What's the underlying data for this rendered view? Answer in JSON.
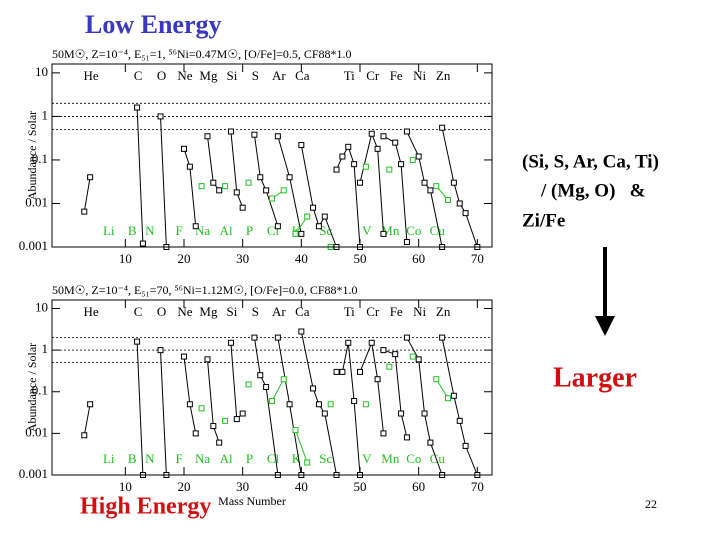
{
  "slide": {
    "title_top": "Low Energy",
    "title_bottom": "High Energy",
    "side_text": [
      "(Si, S, Ar, Ca, Ti)",
      "/ (Mg, O)   &",
      "Zi/Fe"
    ],
    "conclusion": "Larger",
    "page_number": "22"
  },
  "chart_data": [
    {
      "type": "line",
      "subtitle": "50M☉, Z=10⁻⁴, E₅₁=1, ⁵⁶Ni=0.47M☉,  [O/Fe]=0.5, CF88*1.0",
      "ylabel": "Abundance / Solar",
      "log_y": true,
      "xlim": [
        -2.5,
        72.5
      ],
      "ylim": [
        0.001,
        16
      ],
      "xticks": [
        10,
        20,
        30,
        40,
        50,
        60,
        70
      ],
      "yticks": [
        0.001,
        0.01,
        0.1,
        1,
        10
      ],
      "ref_lines": [
        2,
        1,
        0.5
      ],
      "top_labels": [
        {
          "text": "He",
          "x": 4
        },
        {
          "text": "C",
          "x": 12
        },
        {
          "text": "O",
          "x": 16
        },
        {
          "text": "Ne",
          "x": 20
        },
        {
          "text": "Mg",
          "x": 24
        },
        {
          "text": "Si",
          "x": 28
        },
        {
          "text": "S",
          "x": 32
        },
        {
          "text": "Ar",
          "x": 36
        },
        {
          "text": "Ca",
          "x": 40
        },
        {
          "text": "Ti",
          "x": 48
        },
        {
          "text": "Cr",
          "x": 52
        },
        {
          "text": "Fe",
          "x": 56
        },
        {
          "text": "Ni",
          "x": 60
        },
        {
          "text": "Zn",
          "x": 64
        }
      ],
      "bottom_labels": [
        {
          "text": "Li",
          "x": 7
        },
        {
          "text": "B",
          "x": 11
        },
        {
          "text": "N",
          "x": 14
        },
        {
          "text": "F",
          "x": 19
        },
        {
          "text": "Na",
          "x": 23
        },
        {
          "text": "Al",
          "x": 27
        },
        {
          "text": "P",
          "x": 31
        },
        {
          "text": "Cl",
          "x": 35
        },
        {
          "text": "K",
          "x": 39
        },
        {
          "text": "Sc",
          "x": 44
        },
        {
          "text": "V",
          "x": 51
        },
        {
          "text": "Mn",
          "x": 55
        },
        {
          "text": "Co",
          "x": 59
        },
        {
          "text": "Cu",
          "x": 63
        }
      ],
      "series": [
        {
          "color": "#000000",
          "x": [
            3,
            4,
            null,
            12,
            13,
            null,
            16,
            17,
            null,
            20,
            21,
            22,
            null,
            24,
            25,
            26,
            null,
            28,
            29,
            30,
            null,
            32,
            33,
            34,
            36,
            null,
            36,
            38,
            40,
            null,
            40,
            42,
            43,
            44,
            46,
            null,
            46,
            47,
            48,
            49,
            50,
            null,
            50,
            52,
            53,
            54,
            null,
            54,
            56,
            57,
            58,
            null,
            58,
            60,
            61,
            62,
            64,
            null,
            64,
            66,
            67,
            68,
            70
          ],
          "values": [
            0.0065,
            0.04,
            null,
            1.6,
            0.0012,
            null,
            1.0,
            0.001,
            null,
            0.18,
            0.07,
            0.003,
            null,
            0.35,
            0.03,
            0.02,
            null,
            0.45,
            0.018,
            0.008,
            null,
            0.38,
            0.04,
            0.02,
            0.003,
            null,
            0.35,
            0.04,
            0.002,
            null,
            0.22,
            0.008,
            0.003,
            0.005,
            0.001,
            null,
            0.06,
            0.12,
            0.2,
            0.08,
            0.001,
            null,
            0.03,
            0.4,
            0.18,
            0.002,
            null,
            0.35,
            0.25,
            0.08,
            0.0013,
            null,
            0.45,
            0.12,
            0.03,
            0.02,
            0.001,
            null,
            0.55,
            0.03,
            0.01,
            0.006,
            0.001
          ]
        },
        {
          "color": "#22c022",
          "x": [
            23,
            null,
            27,
            null,
            31,
            null,
            35,
            37,
            null,
            39,
            41,
            null,
            45,
            null,
            51,
            null,
            55,
            null,
            59,
            null,
            63,
            65
          ],
          "values": [
            0.025,
            null,
            0.025,
            null,
            0.03,
            null,
            0.013,
            0.02,
            null,
            0.002,
            0.005,
            null,
            0.001,
            null,
            0.07,
            null,
            0.06,
            null,
            0.1,
            null,
            0.025,
            0.012
          ]
        }
      ]
    },
    {
      "type": "line",
      "subtitle": "50M☉, Z=10⁻⁴, E₅₁=70, ⁵⁶Ni=1.12M☉,  [O/Fe]=0.0, CF88*1.0",
      "ylabel": "Abundance / Solar",
      "xlabel": "Mass Number",
      "log_y": true,
      "xlim": [
        -2.5,
        72.5
      ],
      "ylim": [
        0.001,
        16
      ],
      "xticks": [
        10,
        20,
        30,
        40,
        50,
        60,
        70
      ],
      "yticks": [
        0.001,
        0.01,
        0.1,
        1,
        10
      ],
      "ref_lines": [
        2,
        1,
        0.5
      ],
      "top_labels": [
        {
          "text": "He",
          "x": 4
        },
        {
          "text": "C",
          "x": 12
        },
        {
          "text": "O",
          "x": 16
        },
        {
          "text": "Ne",
          "x": 20
        },
        {
          "text": "Mg",
          "x": 24
        },
        {
          "text": "Si",
          "x": 28
        },
        {
          "text": "S",
          "x": 32
        },
        {
          "text": "Ar",
          "x": 36
        },
        {
          "text": "Ca",
          "x": 40
        },
        {
          "text": "Ti",
          "x": 48
        },
        {
          "text": "Cr",
          "x": 52
        },
        {
          "text": "Fe",
          "x": 56
        },
        {
          "text": "Ni",
          "x": 60
        },
        {
          "text": "Zn",
          "x": 64
        }
      ],
      "bottom_labels": [
        {
          "text": "Li",
          "x": 7
        },
        {
          "text": "B",
          "x": 11
        },
        {
          "text": "N",
          "x": 14
        },
        {
          "text": "F",
          "x": 19
        },
        {
          "text": "Na",
          "x": 23
        },
        {
          "text": "Al",
          "x": 27
        },
        {
          "text": "P",
          "x": 31
        },
        {
          "text": "Cl",
          "x": 35
        },
        {
          "text": "K",
          "x": 39
        },
        {
          "text": "Sc",
          "x": 44
        },
        {
          "text": "V",
          "x": 51
        },
        {
          "text": "Mn",
          "x": 55
        },
        {
          "text": "Co",
          "x": 59
        },
        {
          "text": "Cu",
          "x": 63
        }
      ],
      "series": [
        {
          "color": "#000000",
          "x": [
            3,
            4,
            null,
            12,
            13,
            null,
            16,
            17,
            null,
            20,
            21,
            22,
            null,
            24,
            25,
            26,
            null,
            28,
            29,
            30,
            null,
            32,
            33,
            34,
            36,
            null,
            36,
            38,
            40,
            null,
            40,
            42,
            43,
            44,
            46,
            null,
            46,
            47,
            48,
            49,
            50,
            null,
            50,
            52,
            53,
            54,
            null,
            54,
            56,
            57,
            58,
            null,
            58,
            60,
            61,
            62,
            64,
            null,
            64,
            66,
            67,
            68,
            70
          ],
          "values": [
            0.009,
            0.05,
            null,
            1.6,
            0.001,
            null,
            1.0,
            0.001,
            null,
            0.7,
            0.05,
            0.01,
            null,
            0.6,
            0.015,
            0.006,
            null,
            1.5,
            0.022,
            0.03,
            null,
            2.0,
            0.25,
            0.13,
            0.001,
            null,
            2.0,
            0.05,
            0.001,
            null,
            2.8,
            0.12,
            0.05,
            0.03,
            0.001,
            null,
            0.3,
            0.3,
            1.5,
            0.06,
            0.001,
            null,
            0.3,
            1.5,
            0.2,
            0.01,
            null,
            1.0,
            0.8,
            0.03,
            0.008,
            null,
            2.0,
            0.6,
            0.03,
            0.006,
            0.001,
            null,
            2.0,
            0.08,
            0.02,
            0.005,
            0.001
          ]
        },
        {
          "color": "#22c022",
          "x": [
            23,
            null,
            27,
            null,
            31,
            null,
            35,
            37,
            null,
            39,
            41,
            null,
            45,
            null,
            51,
            null,
            55,
            null,
            59,
            null,
            63,
            65
          ],
          "values": [
            0.04,
            null,
            0.02,
            null,
            0.15,
            null,
            0.06,
            0.2,
            null,
            0.012,
            0.002,
            null,
            0.05,
            null,
            0.05,
            null,
            0.4,
            null,
            0.7,
            null,
            0.2,
            0.07
          ]
        }
      ]
    }
  ]
}
